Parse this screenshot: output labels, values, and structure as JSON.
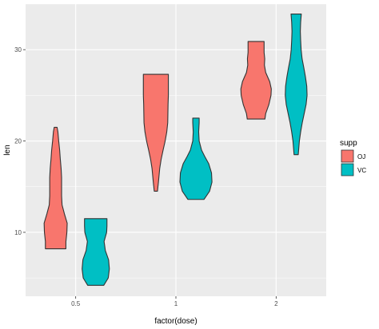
{
  "chart_data": {
    "type": "violin",
    "xlabel": "factor(dose)",
    "ylabel": "len",
    "categories": [
      "0.5",
      "1",
      "2"
    ],
    "y_ticks": [
      10,
      20,
      30
    ],
    "ylim": [
      3,
      35
    ],
    "grid": true,
    "legend": {
      "title": "supp",
      "position": "right",
      "entries": [
        {
          "name": "OJ",
          "color": "#F8766D"
        },
        {
          "name": "VC",
          "color": "#00BFC4"
        }
      ]
    },
    "series": [
      {
        "name": "OJ",
        "color": "#F8766D",
        "violins": [
          {
            "category": "0.5",
            "min": 8.2,
            "max": 21.5,
            "profile": [
              [
                8.2,
                0.64
              ],
              [
                9,
                0.64
              ],
              [
                10,
                0.7
              ],
              [
                11,
                0.72
              ],
              [
                12,
                0.55
              ],
              [
                13,
                0.4
              ],
              [
                14,
                0.37
              ],
              [
                15,
                0.37
              ],
              [
                16,
                0.37
              ],
              [
                17,
                0.34
              ],
              [
                18,
                0.29
              ],
              [
                19,
                0.25
              ],
              [
                20,
                0.19
              ],
              [
                21,
                0.14
              ],
              [
                21.5,
                0.09
              ]
            ]
          },
          {
            "category": "1",
            "min": 14.5,
            "max": 27.3,
            "profile": [
              [
                14.5,
                0.1
              ],
              [
                15.5,
                0.16
              ],
              [
                17,
                0.24
              ],
              [
                18,
                0.33
              ],
              [
                19,
                0.45
              ],
              [
                20,
                0.58
              ],
              [
                21,
                0.68
              ],
              [
                22,
                0.74
              ],
              [
                23,
                0.75
              ],
              [
                24,
                0.76
              ],
              [
                25,
                0.78
              ],
              [
                26,
                0.78
              ],
              [
                27.3,
                0.78
              ]
            ]
          },
          {
            "category": "2",
            "min": 22.4,
            "max": 30.9,
            "profile": [
              [
                22.4,
                0.55
              ],
              [
                23,
                0.6
              ],
              [
                24,
                0.8
              ],
              [
                25,
                0.93
              ],
              [
                25.7,
                0.95
              ],
              [
                26.5,
                0.85
              ],
              [
                27.5,
                0.6
              ],
              [
                28.3,
                0.52
              ],
              [
                29,
                0.54
              ],
              [
                29.7,
                0.5
              ],
              [
                30.9,
                0.5
              ]
            ]
          }
        ]
      },
      {
        "name": "VC",
        "color": "#00BFC4",
        "violins": [
          {
            "category": "0.5",
            "min": 4.2,
            "max": 11.5,
            "profile": [
              [
                4.2,
                0.5
              ],
              [
                5,
                0.78
              ],
              [
                6,
                0.85
              ],
              [
                7,
                0.8
              ],
              [
                8,
                0.6
              ],
              [
                9,
                0.52
              ],
              [
                10,
                0.68
              ],
              [
                10.7,
                0.7
              ],
              [
                11.5,
                0.7
              ]
            ]
          },
          {
            "category": "1",
            "min": 13.6,
            "max": 22.5,
            "profile": [
              [
                13.6,
                0.5
              ],
              [
                14.5,
                0.85
              ],
              [
                15.5,
                1.0
              ],
              [
                16.5,
                0.97
              ],
              [
                17.5,
                0.8
              ],
              [
                18.3,
                0.55
              ],
              [
                19,
                0.35
              ],
              [
                20,
                0.2
              ],
              [
                21,
                0.17
              ],
              [
                22,
                0.2
              ],
              [
                22.5,
                0.2
              ]
            ]
          },
          {
            "category": "2",
            "min": 18.5,
            "max": 33.9,
            "profile": [
              [
                18.5,
                0.13
              ],
              [
                20,
                0.2
              ],
              [
                21,
                0.28
              ],
              [
                22,
                0.38
              ],
              [
                23,
                0.5
              ],
              [
                24,
                0.62
              ],
              [
                25,
                0.68
              ],
              [
                26,
                0.66
              ],
              [
                27,
                0.58
              ],
              [
                28,
                0.48
              ],
              [
                29,
                0.37
              ],
              [
                30,
                0.31
              ],
              [
                31,
                0.28
              ],
              [
                32,
                0.26
              ],
              [
                33,
                0.28
              ],
              [
                33.9,
                0.32
              ]
            ]
          }
        ]
      }
    ]
  }
}
